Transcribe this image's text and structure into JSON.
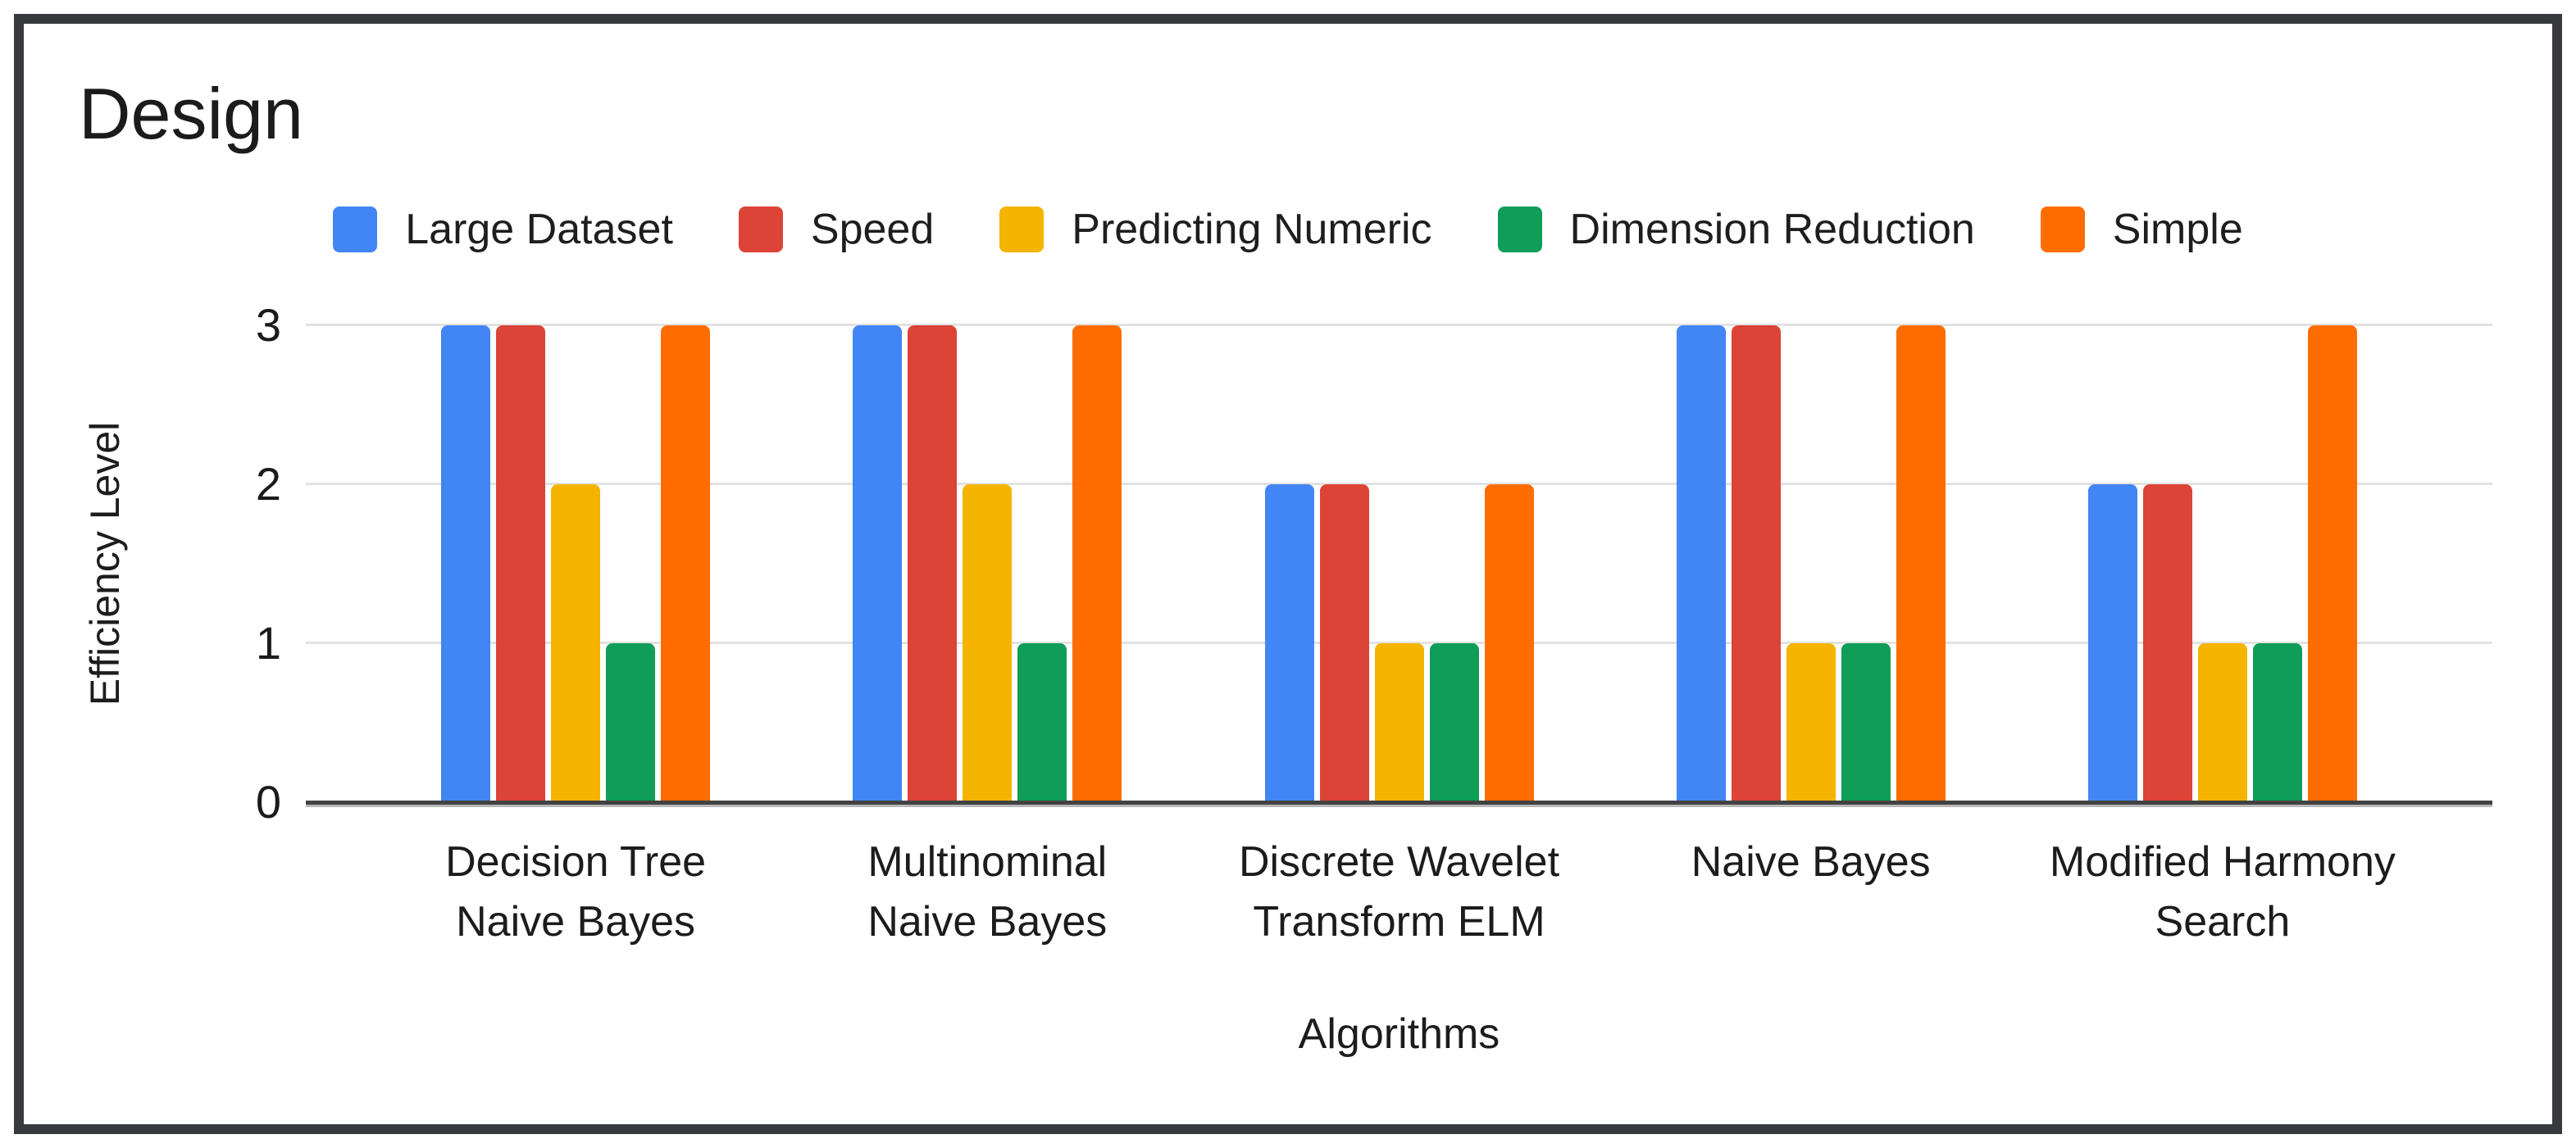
{
  "title": "Design",
  "chart_data": {
    "type": "bar",
    "title": "Design",
    "xlabel": "Algorithms",
    "ylabel": "Efficiency Level",
    "ylim": [
      0,
      3
    ],
    "yticks": [
      0,
      1,
      2,
      3
    ],
    "grid": true,
    "legend_position": "top",
    "categories": [
      "Decision Tree Naive Bayes",
      "Multinominal Naive Bayes",
      "Discrete Wavelet Transform ELM",
      "Naive Bayes",
      "Modified Harmony Search"
    ],
    "series": [
      {
        "name": "Large Dataset",
        "color": "#4285F4",
        "values": [
          3,
          3,
          2,
          3,
          2
        ]
      },
      {
        "name": "Speed",
        "color": "#DB4437",
        "values": [
          3,
          3,
          2,
          3,
          2
        ]
      },
      {
        "name": "Predicting Numeric",
        "color": "#F4B400",
        "values": [
          2,
          2,
          1,
          1,
          1
        ]
      },
      {
        "name": "Dimension Reduction",
        "color": "#0F9D58",
        "values": [
          1,
          1,
          1,
          1,
          1
        ]
      },
      {
        "name": "Simple",
        "color": "#FF6D01",
        "values": [
          3,
          3,
          2,
          3,
          3
        ]
      }
    ]
  },
  "colors": {
    "frame_border": "#37393c",
    "gridline": "#e2e2e2",
    "baseline": "#424242",
    "text": "#1c1c1c"
  }
}
